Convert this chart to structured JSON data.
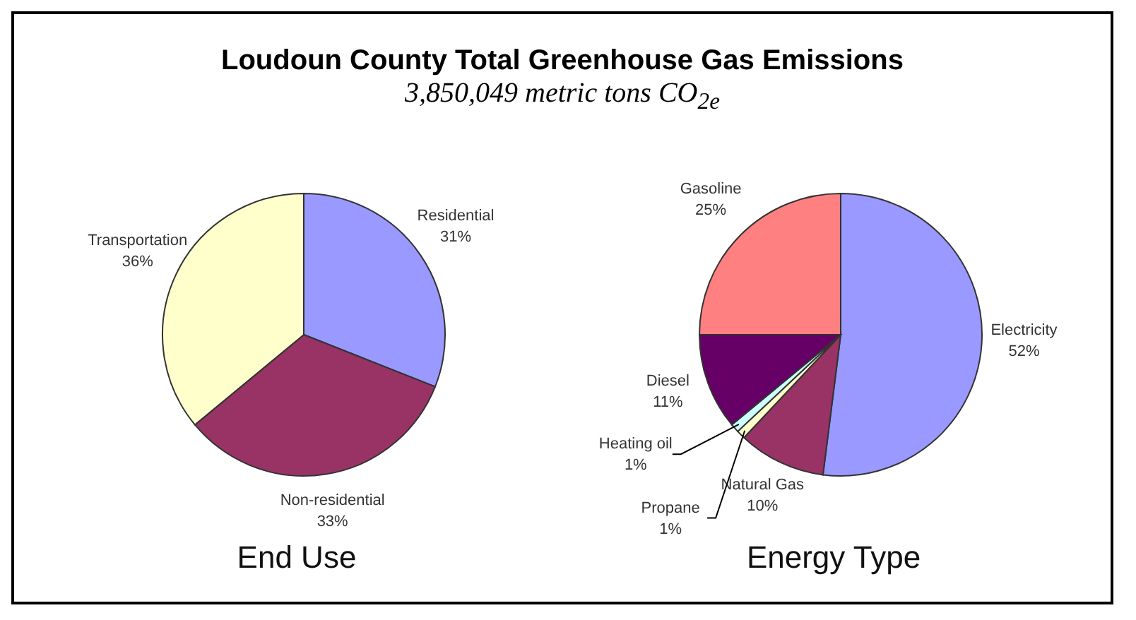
{
  "chart_data": [
    {
      "type": "pie",
      "title": "Loudoun County Total Greenhouse Gas Emissions",
      "subtitle": "3,850,049 metric tons CO$_{2e}$",
      "xlabel": "End Use",
      "categories": [
        "Residential",
        "Non-residential",
        "Transportation"
      ],
      "values": [
        31,
        33,
        36
      ],
      "value_labels": [
        "31%",
        "33%",
        "36%"
      ],
      "colors": [
        "#9999ff",
        "#993366",
        "#ffffcc"
      ],
      "data_labels": true,
      "legend": false
    },
    {
      "type": "pie",
      "xlabel": "Energy Type",
      "categories": [
        "Electricity",
        "Natural Gas",
        "Propane",
        "Heating oil",
        "Diesel",
        "Gasoline"
      ],
      "values": [
        52,
        10,
        1,
        1,
        11,
        25
      ],
      "value_labels": [
        "52%",
        "10%",
        "1%",
        "1%",
        "11%",
        "25%"
      ],
      "colors": [
        "#9999ff",
        "#993366",
        "#ffffcc",
        "#ccffff",
        "#660066",
        "#ff8080"
      ],
      "data_labels": true,
      "legend": false
    }
  ]
}
